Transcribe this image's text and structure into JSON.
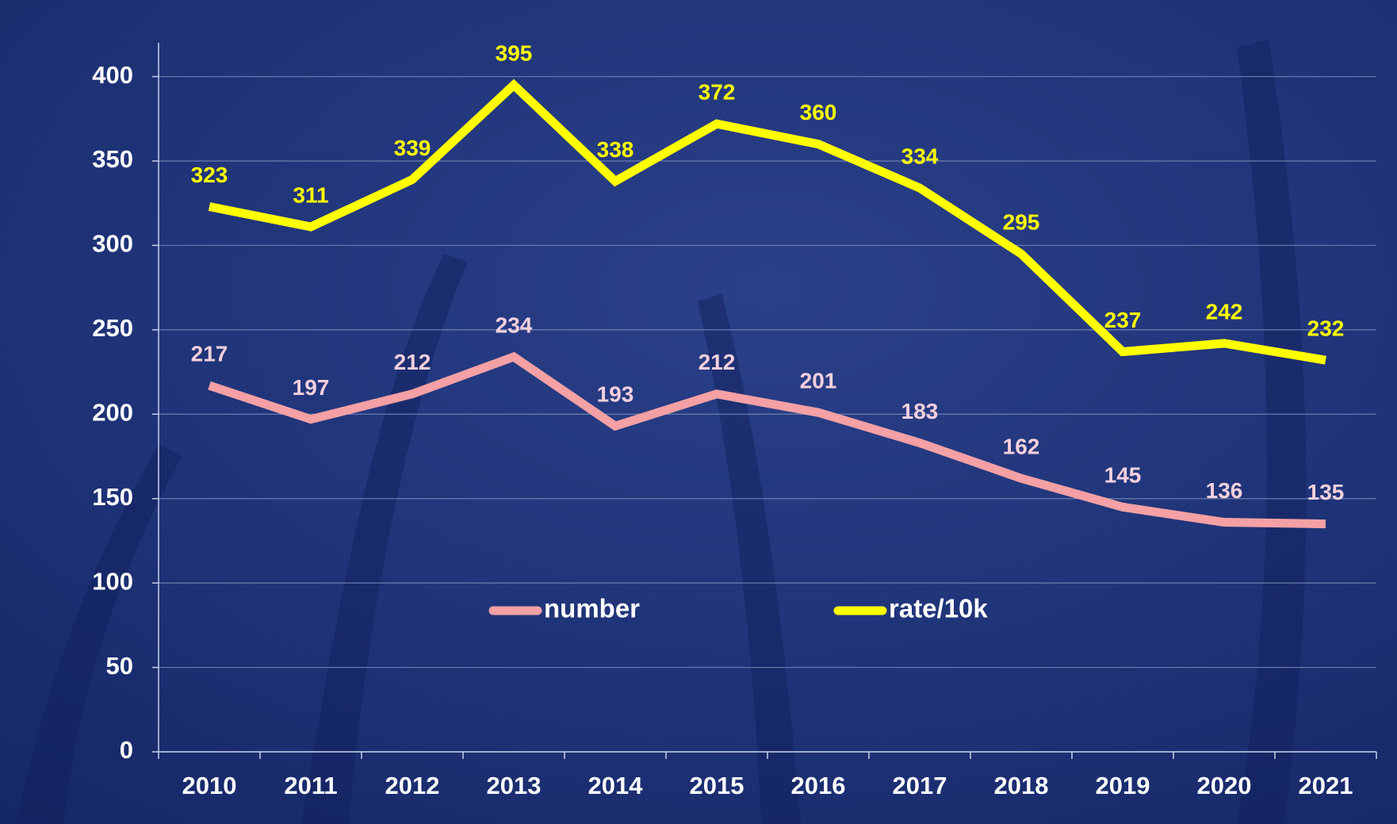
{
  "chart_data": {
    "type": "line",
    "categories": [
      "2010",
      "2011",
      "2012",
      "2013",
      "2014",
      "2015",
      "2016",
      "2017",
      "2018",
      "2019",
      "2020",
      "2021"
    ],
    "series": [
      {
        "name": "number",
        "color": "#f4a0a4",
        "label_color": "#f6d0dc",
        "values": [
          217,
          197,
          212,
          234,
          193,
          212,
          201,
          183,
          162,
          145,
          136,
          135
        ]
      },
      {
        "name": "rate/10k",
        "color": "#ffff00",
        "label_color": "#ffff00",
        "values": [
          323,
          311,
          339,
          395,
          338,
          372,
          360,
          334,
          295,
          237,
          242,
          232
        ]
      }
    ],
    "ylim": [
      0,
      420
    ],
    "yticks": [
      0,
      50,
      100,
      150,
      200,
      250,
      300,
      350,
      400
    ],
    "grid": true,
    "legend": "center"
  }
}
